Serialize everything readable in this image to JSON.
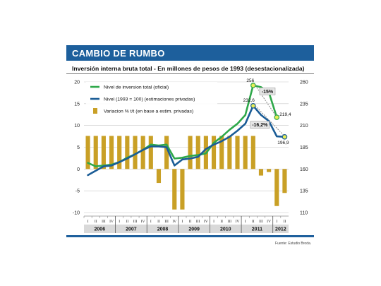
{
  "banner_title": "CAMBIO DE RUMBO",
  "subtitle": "Inversión interna bruta total - En millones de pesos de 1993 (desestacionalizada)",
  "source": "Fuente: Estudio Broda.",
  "colors": {
    "banner": "#1d5f9c",
    "green": "#2ea84a",
    "blue": "#1a5c96",
    "bar": "#c9a026",
    "highlight": "#e8ee55"
  },
  "chart_data": {
    "type": "line",
    "x": [
      "2006 I",
      "2006 II",
      "2006 III",
      "2006 IV",
      "2007 I",
      "2007 II",
      "2007 III",
      "2007 IV",
      "2008 I",
      "2008 II",
      "2008 III",
      "2008 IV",
      "2009 I",
      "2009 II",
      "2009 III",
      "2009 IV",
      "2010 I",
      "2010 II",
      "2010 III",
      "2010 IV",
      "2011 I",
      "2011 II",
      "2011 III",
      "2011 IV",
      "2012 I",
      "2012 II"
    ],
    "quarter_labels": [
      "I",
      "II",
      "III",
      "IV",
      "I",
      "II",
      "III",
      "IV",
      "I",
      "II",
      "III",
      "IV",
      "I",
      "II",
      "III",
      "IV",
      "I",
      "II",
      "III",
      "IV",
      "I",
      "II",
      "III",
      "IV",
      "I",
      "II"
    ],
    "years": [
      {
        "label": "2006",
        "quarters": 4
      },
      {
        "label": "2007",
        "quarters": 4
      },
      {
        "label": "2008",
        "quarters": 4
      },
      {
        "label": "2009",
        "quarters": 4
      },
      {
        "label": "2010",
        "quarters": 4
      },
      {
        "label": "2011",
        "quarters": 4
      },
      {
        "label": "2012",
        "quarters": 2
      }
    ],
    "left_axis": {
      "ticks": [
        20,
        15,
        10,
        5,
        0,
        -5,
        -10
      ],
      "ylim": [
        -10,
        20
      ]
    },
    "right_axis": {
      "ticks": [
        260,
        235,
        210,
        185,
        160,
        135,
        110
      ],
      "ylim": [
        110,
        260
      ]
    },
    "series": [
      {
        "name": "Nivel de inversion total (oficial)",
        "type": "line",
        "axis": "right",
        "color": "#2ea84a",
        "values": [
          167,
          163,
          164,
          165,
          168,
          173,
          177,
          182,
          188,
          187,
          188,
          172,
          173,
          175,
          176,
          178,
          190,
          197,
          205,
          212,
          222,
          256,
          254,
          248,
          219.4,
          null
        ]
      },
      {
        "name": "Nivel (1993 = 100) (estimaciones privadas)",
        "type": "line",
        "axis": "right",
        "color": "#1a5c96",
        "values": [
          153,
          158,
          163,
          164,
          168,
          172,
          177,
          182,
          186,
          186,
          185,
          164,
          171,
          172,
          174,
          183,
          188,
          192,
          197,
          204,
          212,
          232.6,
          222,
          215,
          197.5,
          196.9
        ]
      },
      {
        "name": "Variacion % t/t (en base a estim. privadas)",
        "type": "bar",
        "axis": "left",
        "color": "#c9a026",
        "values": [
          7.6,
          7.6,
          7.6,
          7.6,
          7.6,
          7.6,
          7.6,
          7.6,
          7.6,
          -3.2,
          7.6,
          -9.3,
          -9.3,
          7.6,
          7.6,
          7.6,
          7.6,
          7.6,
          7.6,
          7.6,
          7.6,
          7.6,
          -1.5,
          -0.7,
          -8.5,
          -5.5
        ]
      }
    ],
    "annotations": [
      {
        "text": "256",
        "at_index": 21,
        "series": 0
      },
      {
        "text": "232,6",
        "at_index": 21,
        "series": 1
      },
      {
        "text": "219,4",
        "at_index": 24,
        "series": 0
      },
      {
        "text": "196,9",
        "at_index": 25,
        "series": 1
      },
      {
        "text": "-15%",
        "kind": "change"
      },
      {
        "text": "-16,2%",
        "kind": "change"
      }
    ],
    "grid": true,
    "legend_position": "top-left"
  }
}
